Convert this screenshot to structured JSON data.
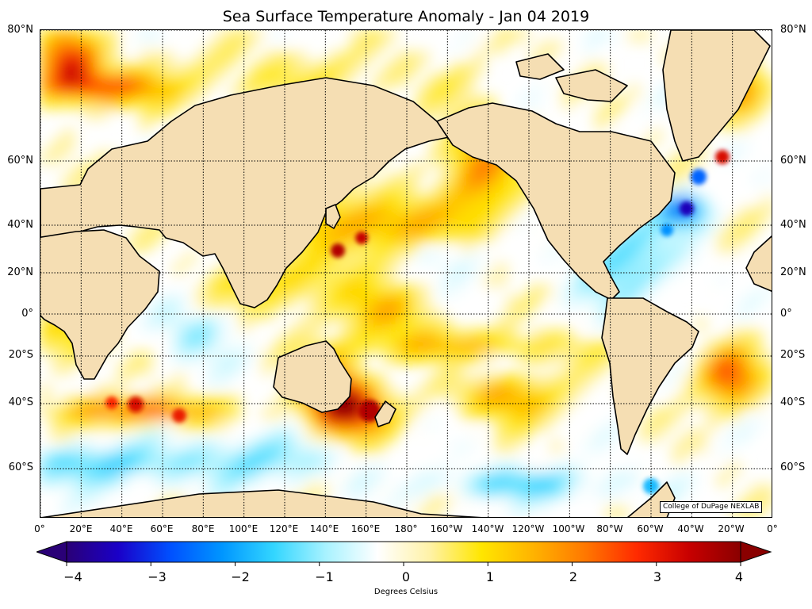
{
  "title": "Sea Surface Temperature Anomaly - Jan 04 2019",
  "lat_labels": [
    "80°N",
    "60°N",
    "40°N",
    "20°N",
    "0°",
    "20°S",
    "40°S",
    "60°S"
  ],
  "lon_labels": [
    "0°",
    "20°E",
    "40°E",
    "60°E",
    "80°E",
    "100°E",
    "120°E",
    "140°E",
    "160°E",
    "180°",
    "160°W",
    "140°W",
    "120°W",
    "100°W",
    "80°W",
    "60°W",
    "40°W",
    "20°W",
    "0°"
  ],
  "credit": "College of DuPage NEXLAB",
  "colorbar": {
    "ticks": [
      "−4",
      "−3",
      "−2",
      "−1",
      "0",
      "1",
      "2",
      "3",
      "4"
    ],
    "range": [
      -4,
      4
    ],
    "label": "Degrees Celsius",
    "stops": [
      "#2a0077",
      "#1a00c8",
      "#0050ff",
      "#0096ff",
      "#33d6ff",
      "#a8f2ff",
      "#ffffff",
      "#fff2a8",
      "#ffe600",
      "#ffb300",
      "#ff7800",
      "#ff2a00",
      "#c80000",
      "#8a0000"
    ]
  },
  "colors": {
    "land": "#f5deb3",
    "coast": "#000000",
    "border": "#808080",
    "gridline": "#000000"
  }
}
